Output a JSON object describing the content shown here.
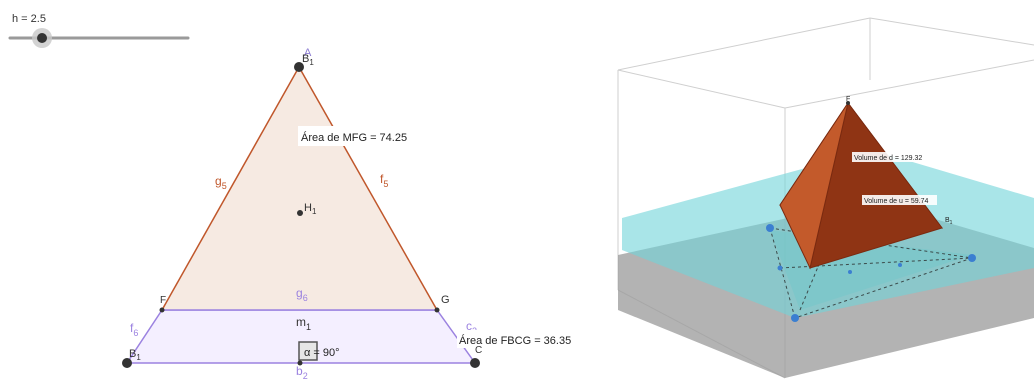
{
  "slider": {
    "label": "h = 2.5",
    "value": 2.5,
    "position": 0.18
  },
  "graphics2d": {
    "points": {
      "apex": "B",
      "apex_sub": "1",
      "apex_overlap": "A",
      "center": "H",
      "center_sub": "1",
      "left_mid": "F",
      "right_mid": "G",
      "bottom_left": "B",
      "bottom_left_sub": "1",
      "bottom_right": "C"
    },
    "segments": {
      "left_edge": "g",
      "left_edge_sub": "5",
      "right_edge": "f",
      "right_edge_sub": "5",
      "mid_line": "g",
      "mid_line_sub": "6",
      "left_trap": "f",
      "left_trap_sub": "6",
      "right_trap": "c",
      "right_trap_sub": "2",
      "bottom": "b",
      "bottom_sub": "2",
      "center_line": "m",
      "center_line_sub": "1"
    },
    "area_mfg": "Área de  MFG = 74.25",
    "area_fbcg": "Área de  FBCG = 36.35",
    "angle_label": "α = 90°",
    "colors": {
      "triangle_fill": "#f6eae2",
      "triangle_stroke": "#c0572b",
      "trap_fill": "#f4efff",
      "trap_stroke": "#9b82e0",
      "point": "#333333"
    }
  },
  "graphics3d": {
    "apex_label": "F",
    "vertex_label": "B",
    "vertex_sub": "1",
    "volume_d": "Volume de d = 129.32",
    "volume_u": "Volume de u = 59.74",
    "colors": {
      "pyramid": "#b5471c",
      "plane": "#6fd3d8",
      "floor": "#9a9a9a",
      "point": "#3b7fd1"
    }
  }
}
